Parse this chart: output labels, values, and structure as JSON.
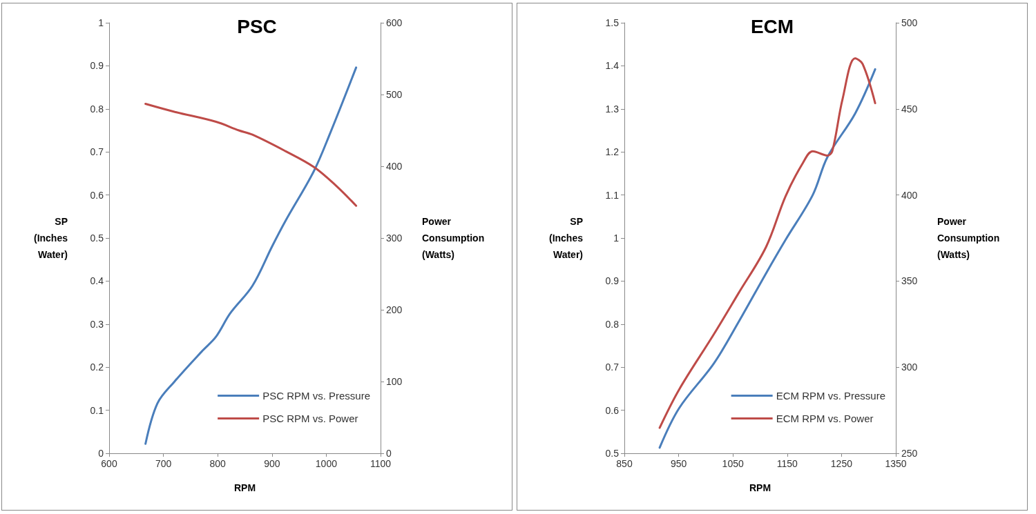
{
  "chart_data": [
    {
      "type": "line",
      "title": "PSC",
      "xlabel": "RPM",
      "ylabel": "SP (Inches Water)",
      "y2label": "Power Consumption (Watts)",
      "xlim": [
        600,
        1100
      ],
      "xticks": [
        600,
        700,
        800,
        900,
        1000,
        1100
      ],
      "ylim": [
        0,
        1
      ],
      "yticks": [
        0,
        0.1,
        0.2,
        0.3,
        0.4,
        0.5,
        0.6,
        0.7,
        0.8,
        0.9,
        1
      ],
      "y2lim": [
        0,
        600
      ],
      "y2ticks": [
        0,
        100,
        200,
        300,
        400,
        500,
        600
      ],
      "grid": false,
      "legend": "bottom right",
      "marker": "none",
      "line_style": "solid",
      "series": [
        {
          "name": "PSC RPM vs. Pressure",
          "color": "#4a7ebb",
          "x": [
            667,
            689,
            720,
            771,
            797,
            823,
            864,
            900,
            925,
            977,
            1007,
            1055
          ],
          "values": [
            0.022,
            0.116,
            0.166,
            0.237,
            0.271,
            0.325,
            0.389,
            0.48,
            0.54,
            0.655,
            0.743,
            0.896
          ]
        },
        {
          "name": "PSC RPM vs. Power",
          "color": "#be4b48",
          "axis": "y2",
          "x": [
            667,
            720,
            797,
            839,
            864,
            925,
            977,
            1018,
            1055
          ],
          "values": [
            487,
            476,
            462,
            450,
            444,
            421,
            399,
            373,
            345
          ]
        }
      ]
    },
    {
      "type": "line",
      "title": "ECM",
      "xlabel": "RPM",
      "ylabel": "SP (Inches Water)",
      "y2label": "Power Consumption (Watts)",
      "xlim": [
        850,
        1350
      ],
      "xticks": [
        850,
        950,
        1050,
        1150,
        1250,
        1350
      ],
      "ylim": [
        0.5,
        1.5
      ],
      "yticks": [
        0.5,
        0.6,
        0.7,
        0.8,
        0.9,
        1,
        1.1,
        1.2,
        1.3,
        1.4,
        1.5
      ],
      "y2lim": [
        250,
        500
      ],
      "y2ticks": [
        250,
        300,
        350,
        400,
        450,
        500
      ],
      "grid": false,
      "legend": "bottom right",
      "marker": "none",
      "line_style": "solid",
      "series": [
        {
          "name": "ECM RPM vs. Pressure",
          "color": "#4a7ebb",
          "x": [
            915,
            951,
            1015,
            1060,
            1111,
            1147,
            1197,
            1224,
            1275,
            1312
          ],
          "values": [
            0.513,
            0.605,
            0.709,
            0.804,
            0.918,
            0.996,
            1.1,
            1.188,
            1.289,
            1.392
          ]
        },
        {
          "name": "ECM RPM vs. Power",
          "color": "#be4b48",
          "axis": "y2",
          "x": [
            915,
            951,
            1015,
            1060,
            1111,
            1147,
            1179,
            1197,
            1224,
            1233,
            1252,
            1275,
            1289,
            1312
          ],
          "values": [
            264.8,
            287.1,
            319.2,
            342.8,
            369.8,
            399.3,
            418.7,
            425.4,
            422.9,
            425.4,
            455.8,
            479.4,
            476,
            453.3
          ]
        }
      ]
    }
  ]
}
